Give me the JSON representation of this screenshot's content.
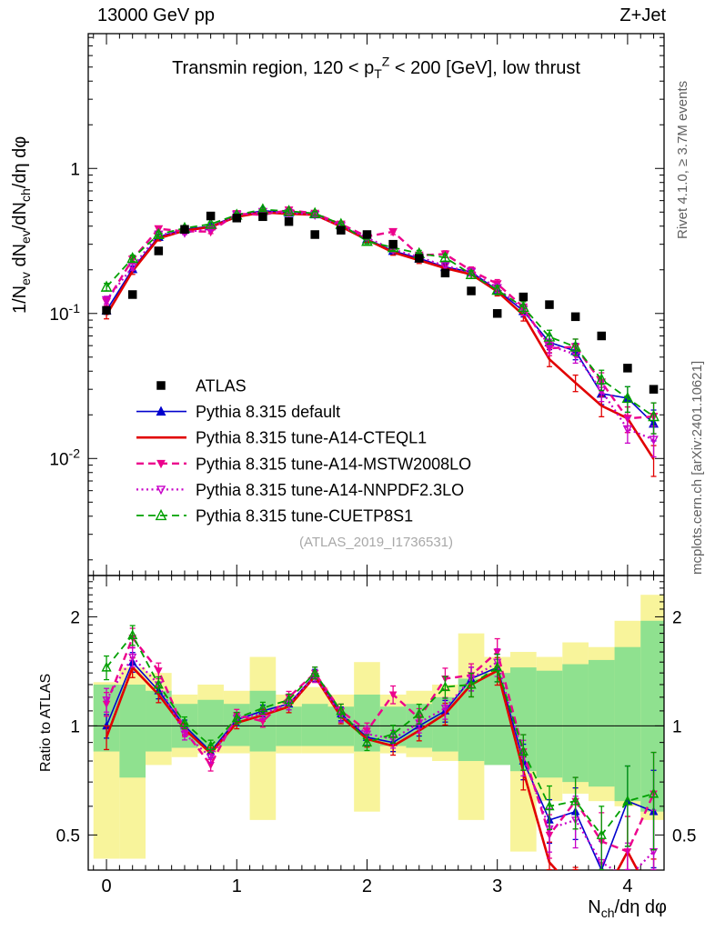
{
  "header": {
    "left": "13000 GeV pp",
    "right": "Z+Jet"
  },
  "side": {
    "rivet": "Rivet 4.1.0, ≥ 3.7M events",
    "mcplots": "mcplots.cern.ch [arXiv:2401.10621]"
  },
  "plot": {
    "watermark": "(ATLAS_2019_I1736531)"
  },
  "ratio": {
    "ylabel": "Ratio to ATLAS"
  },
  "chart_data": {
    "type": "line",
    "title": "Transmin region, 120 < p_{T}^{Z} < 200 [GeV], low thrust",
    "xlabel": "N_{ch}/dη dφ",
    "ylabel": "1/N_{ev} dN_{ev}/dN_{ch}/dη dφ",
    "ratio_ylabel": "Ratio to ATLAS",
    "xlim": [
      -0.14,
      4.28
    ],
    "ylim_main": [
      0.00156,
      8.5
    ],
    "ylim_ratio": [
      0.4,
      2.6
    ],
    "x_ticks": [
      0,
      1,
      2,
      3,
      4
    ],
    "y_ticks_main": [
      "1",
      "10^{-1}",
      "10^{-2}"
    ],
    "y_ticks_ratio_vals": [
      2,
      1,
      0.5
    ],
    "y_ticks_ratio": [
      "2",
      "1",
      "0.5"
    ],
    "bin_width": 0.2,
    "x": [
      0,
      0.2,
      0.4,
      0.6,
      0.8,
      1,
      1.2,
      1.4,
      1.6,
      1.8,
      2,
      2.2,
      2.4,
      2.6,
      2.8,
      3,
      3.2,
      3.4,
      3.6,
      3.8,
      4,
      4.2
    ],
    "atlas": {
      "label": "ATLAS",
      "color": "#000000",
      "marker": "square",
      "values": [
        0.105,
        0.135,
        0.27,
        0.38,
        0.47,
        0.455,
        0.465,
        0.43,
        0.35,
        0.375,
        0.35,
        0.3,
        0.24,
        0.19,
        0.143,
        0.1,
        0.13,
        0.115,
        0.095,
        0.07,
        0.042,
        0.03
      ]
    },
    "yerr_rel": [
      0.06,
      0.05,
      0.04,
      0.03,
      0.03,
      0.03,
      0.03,
      0.03,
      0.03,
      0.035,
      0.04,
      0.045,
      0.05,
      0.055,
      0.06,
      0.07,
      0.09,
      0.11,
      0.13,
      0.16,
      0.2,
      0.24
    ],
    "series": [
      {
        "name": "Pythia 8.315 default",
        "color": "#0000cd",
        "line": "solid",
        "width": 1.6,
        "marker": "triangle-up-filled",
        "msize": 8,
        "ratio": [
          1.0,
          1.5,
          1.25,
          1.0,
          0.85,
          1.04,
          1.1,
          1.15,
          1.38,
          1.08,
          0.93,
          0.9,
          1.0,
          1.1,
          1.35,
          1.45,
          0.8,
          0.55,
          0.58,
          0.4,
          0.62,
          0.58
        ]
      },
      {
        "name": "Pythia 8.315 tune-A14-CTEQL1",
        "color": "#e10000",
        "line": "solid",
        "width": 2.6,
        "marker": "none",
        "msize": 0,
        "ratio": [
          0.93,
          1.45,
          1.22,
          0.98,
          0.84,
          1.02,
          1.07,
          1.13,
          1.37,
          1.06,
          0.92,
          0.88,
          0.97,
          1.08,
          1.3,
          1.42,
          0.75,
          0.42,
          0.35,
          0.33,
          0.45,
          0.33
        ]
      },
      {
        "name": "Pythia 8.315 tune-A14-MSTW2008LO",
        "color": "#ec008c",
        "line": "dash",
        "width": 2.4,
        "marker": "triangle-down-filled",
        "msize": 7,
        "ratio": [
          1.15,
          1.75,
          1.42,
          0.97,
          0.78,
          1.07,
          1.03,
          1.2,
          1.4,
          1.1,
          0.97,
          1.22,
          1.05,
          1.35,
          1.38,
          1.6,
          0.85,
          0.5,
          0.62,
          0.48,
          0.45,
          0.65
        ]
      },
      {
        "name": "Pythia 8.315 tune-A14-NNPDF2.3LO",
        "color": "#c800c8",
        "line": "dot",
        "width": 2.2,
        "marker": "triangle-down-open",
        "msize": 7,
        "ratio": [
          1.18,
          1.55,
          1.3,
          0.95,
          0.82,
          1.05,
          1.08,
          1.15,
          1.37,
          1.07,
          0.95,
          0.92,
          1.02,
          1.12,
          1.35,
          1.5,
          0.82,
          0.52,
          0.55,
          0.42,
          0.38,
          0.45
        ]
      },
      {
        "name": "Pythia 8.315 tune-CUETP8S1",
        "color": "#00a000",
        "line": "dash",
        "width": 1.8,
        "marker": "triangle-up-open",
        "msize": 9,
        "ratio": [
          1.45,
          1.78,
          1.3,
          1.02,
          0.88,
          1.05,
          1.12,
          1.18,
          1.4,
          1.1,
          0.9,
          0.95,
          1.08,
          1.28,
          1.3,
          1.45,
          0.85,
          0.6,
          0.62,
          0.5,
          0.62,
          0.65
        ]
      }
    ],
    "bands": {
      "yellow": {
        "color": "#f8f49b",
        "lo": [
          0.43,
          0.43,
          0.78,
          0.82,
          0.84,
          0.84,
          0.55,
          0.84,
          0.84,
          0.84,
          0.58,
          0.84,
          0.82,
          0.8,
          0.55,
          0.8,
          0.45,
          0.62,
          0.65,
          0.62,
          0.6,
          0.55
        ],
        "hi": [
          1.32,
          1.45,
          1.4,
          1.22,
          1.3,
          1.25,
          1.55,
          1.22,
          1.28,
          1.22,
          1.5,
          1.22,
          1.25,
          1.3,
          1.8,
          1.55,
          1.6,
          1.55,
          1.7,
          1.65,
          1.95,
          2.3
        ]
      },
      "green": {
        "color": "#8fe18f",
        "lo": [
          0.85,
          0.72,
          0.85,
          0.87,
          0.88,
          0.88,
          0.85,
          0.88,
          0.88,
          0.88,
          0.85,
          0.88,
          0.87,
          0.85,
          0.8,
          0.78,
          0.75,
          0.72,
          0.7,
          0.68,
          0.62,
          0.58
        ],
        "hi": [
          1.3,
          1.3,
          1.25,
          1.15,
          1.18,
          1.15,
          1.25,
          1.13,
          1.15,
          1.13,
          1.22,
          1.13,
          1.15,
          1.2,
          1.35,
          1.4,
          1.45,
          1.42,
          1.48,
          1.52,
          1.65,
          1.95
        ]
      }
    }
  }
}
